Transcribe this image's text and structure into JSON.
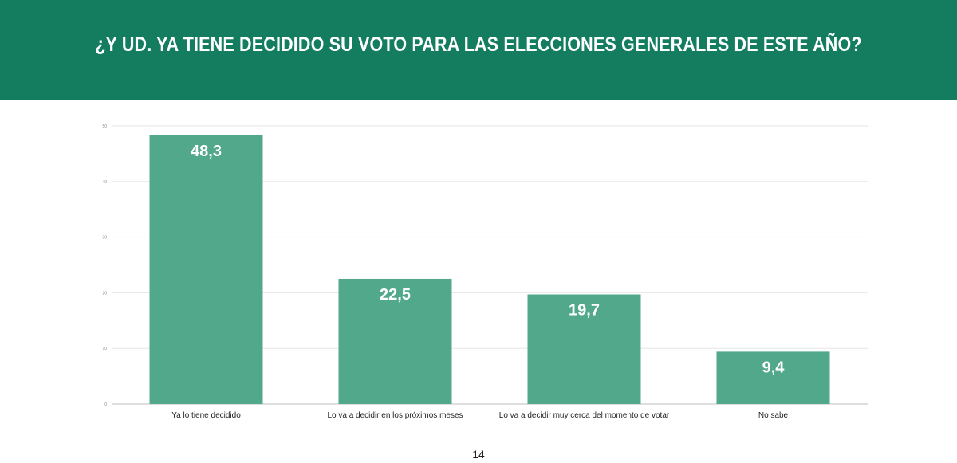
{
  "header": {
    "title": "¿Y UD. YA TIENE DECIDIDO SU VOTO PARA LAS ELECCIONES GENERALES DE ESTE AÑO?"
  },
  "colors": {
    "header_bg": "#147d60",
    "bar": "#52a88b",
    "grid": "#e6e6e6",
    "axis": "#bdbdbd"
  },
  "chart_data": {
    "type": "bar",
    "title": "¿Y UD. YA TIENE DECIDIDO SU VOTO PARA LAS ELECCIONES GENERALES DE ESTE AÑO?",
    "categories": [
      "Ya lo tiene decidido",
      "Lo va a decidir en los próximos meses",
      "Lo va a decidir muy cerca del momento de votar",
      "No sabe"
    ],
    "values": [
      48.3,
      22.5,
      19.7,
      9.4
    ],
    "value_labels": [
      "48,3",
      "22,5",
      "19,7",
      "9,4"
    ],
    "yticks": [
      0,
      10,
      20,
      30,
      40,
      50
    ],
    "ylim": [
      0,
      50
    ],
    "xlabel": "",
    "ylabel": "",
    "grid": true
  },
  "footer": {
    "page_number": "14"
  }
}
